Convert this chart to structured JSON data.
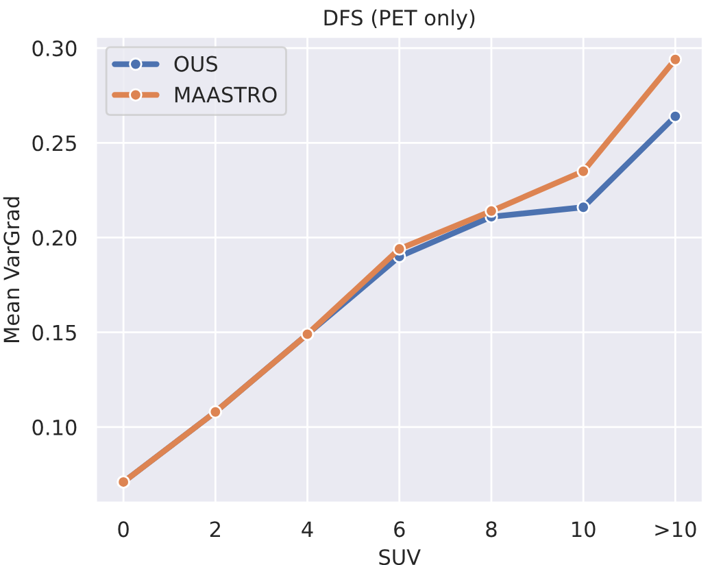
{
  "chart_data": {
    "type": "line",
    "title": "DFS (PET only)",
    "xlabel": "SUV",
    "ylabel": "Mean VarGrad",
    "categories": [
      "0",
      "2",
      "4",
      "6",
      "8",
      "10",
      ">10"
    ],
    "series": [
      {
        "name": "OUS",
        "color": "#4c72b0",
        "values": [
          0.071,
          0.108,
          0.149,
          0.19,
          0.211,
          0.216,
          0.264
        ]
      },
      {
        "name": "MAASTRO",
        "color": "#dd8452",
        "values": [
          0.071,
          0.108,
          0.149,
          0.194,
          0.214,
          0.235,
          0.294
        ]
      }
    ],
    "ylim": [
      0.06,
      0.306
    ],
    "yticks": [
      {
        "value": 0.1,
        "label": "0.10"
      },
      0.15,
      {
        "value": 0.2,
        "label": "0.20"
      },
      0.25,
      {
        "value": 0.3,
        "label": "0.30"
      }
    ],
    "grid": true,
    "legend": "top left",
    "marker": "circle",
    "line_style": "solid"
  }
}
